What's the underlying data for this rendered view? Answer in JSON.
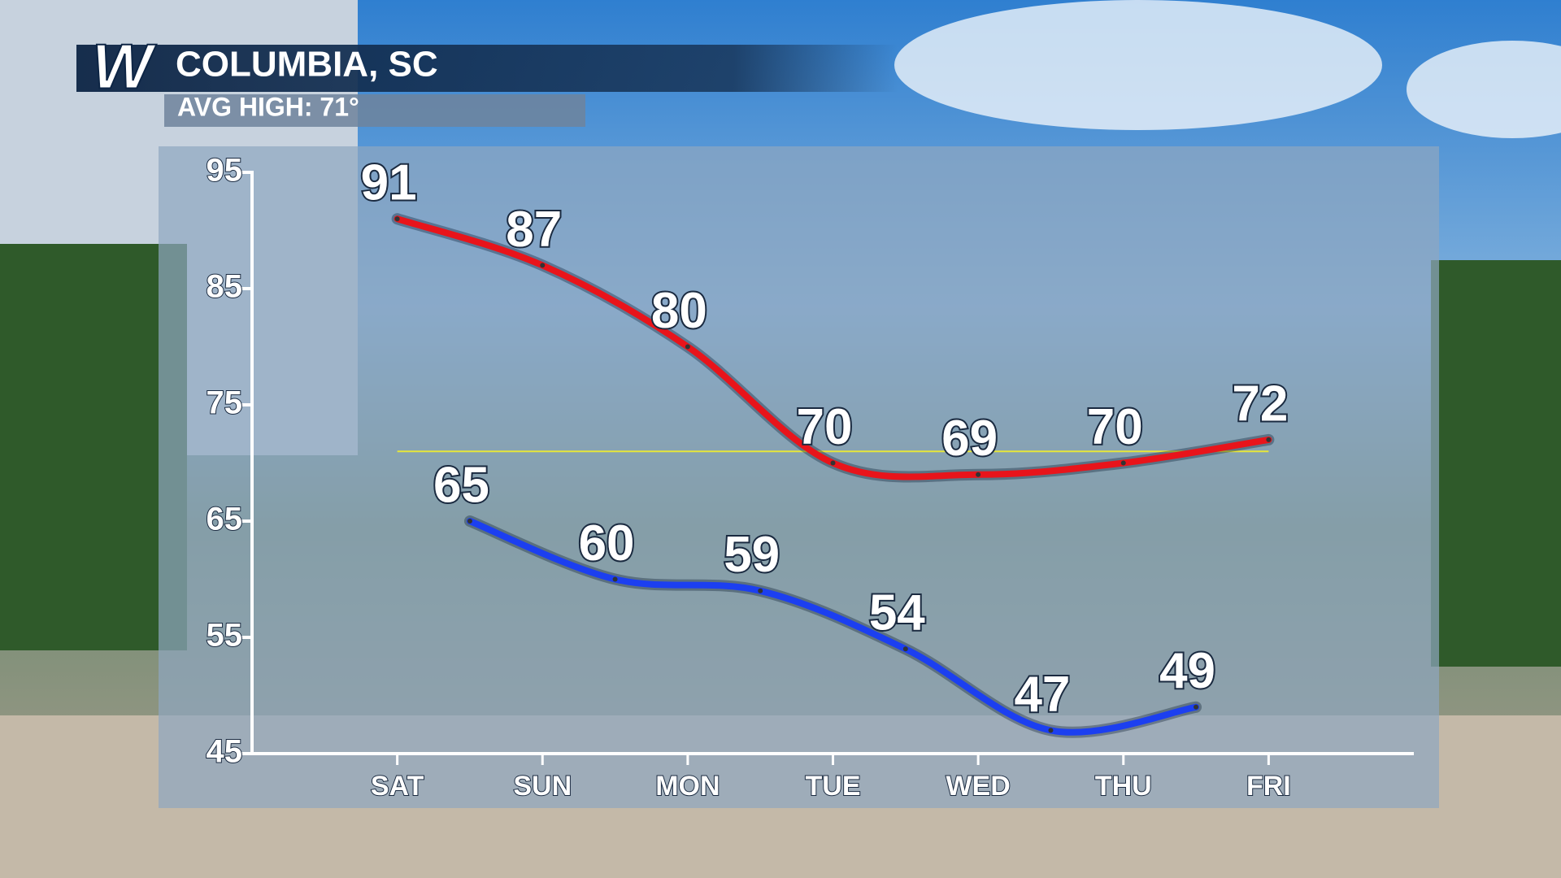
{
  "chart_data": {
    "type": "line",
    "logo": "W",
    "title": "COLUMBIA, SC",
    "subtitle": "AVG HIGH: 71°",
    "avg_line": 71,
    "avg_color": "#e6e63a",
    "xlim": [
      -1,
      7
    ],
    "xticks": [
      {
        "value": 0,
        "label": "SAT"
      },
      {
        "value": 1,
        "label": "SUN"
      },
      {
        "value": 2,
        "label": "MON"
      },
      {
        "value": 3,
        "label": "TUE"
      },
      {
        "value": 4,
        "label": "WED"
      },
      {
        "value": 5,
        "label": "THU"
      },
      {
        "value": 6,
        "label": "FRI"
      }
    ],
    "ylim": [
      45,
      95
    ],
    "yticks": [
      45,
      55,
      65,
      75,
      85,
      95
    ],
    "series": [
      {
        "color": "#e8141b",
        "x": [
          0,
          1,
          2,
          3,
          4,
          5,
          6
        ],
        "values": [
          91,
          87,
          80,
          70,
          69,
          70,
          72
        ]
      },
      {
        "color": "#1c3ff0",
        "x": [
          0.5,
          1.5,
          2.5,
          3.5,
          4.5,
          5.5
        ],
        "values": [
          65,
          60,
          59,
          54,
          47,
          49
        ]
      }
    ]
  }
}
